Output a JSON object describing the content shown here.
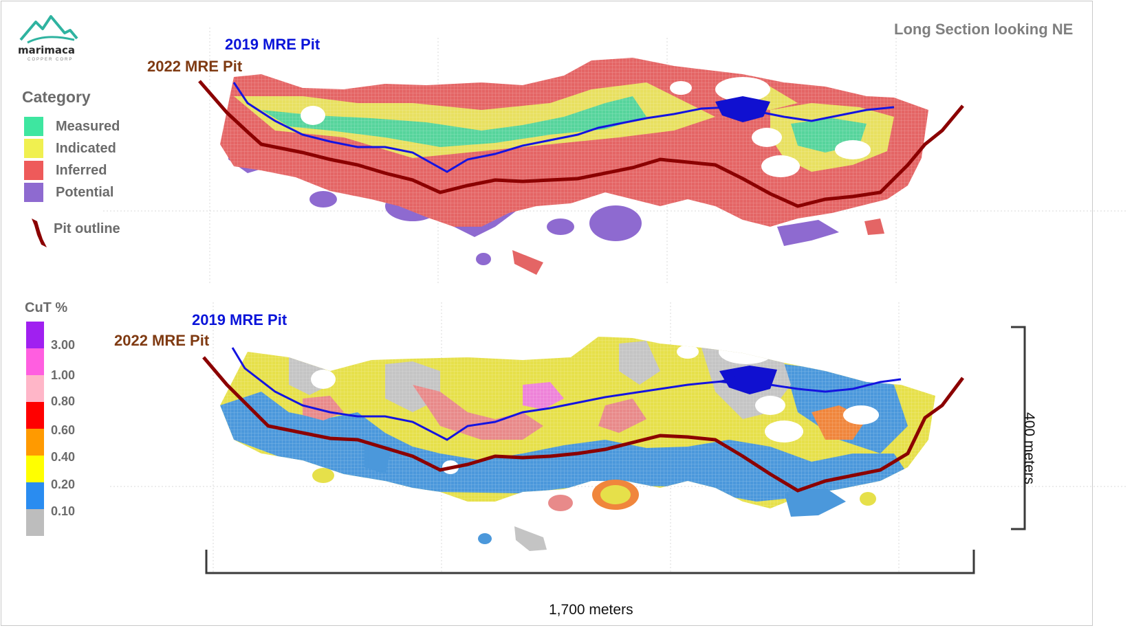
{
  "title": "Long Section looking NE",
  "logo": {
    "name": "marimaca",
    "tagline": "COPPER CORP"
  },
  "category_legend": {
    "heading": "Category",
    "items": [
      {
        "label": "Measured",
        "color": "#3ee6a0"
      },
      {
        "label": "Indicated",
        "color": "#f0f050"
      },
      {
        "label": "Inferred",
        "color": "#ee5a5a"
      },
      {
        "label": "Potential",
        "color": "#8e6ad0"
      }
    ],
    "pit_outline": {
      "label": "Pit outline",
      "color": "#8b0000"
    }
  },
  "cut_legend": {
    "heading": "CuT %",
    "ticks": [
      "3.00",
      "1.00",
      "0.80",
      "0.60",
      "0.40",
      "0.20",
      "0.10"
    ],
    "colors": [
      "#a020f0",
      "#ff5ee0",
      "#ffb6c8",
      "#ff0000",
      "#ff9a00",
      "#ffff00",
      "#2a8cf0",
      "#bdbdbd"
    ]
  },
  "pit_labels": {
    "pit_2019": "2019 MRE Pit",
    "pit_2022": "2022 MRE Pit"
  },
  "scale": {
    "vertical": "400 meters",
    "horizontal": "1,700 meters"
  }
}
